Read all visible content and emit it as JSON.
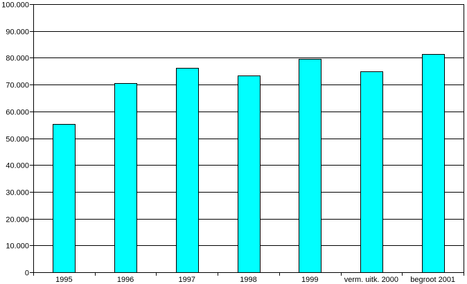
{
  "chart_data": {
    "type": "bar",
    "categories": [
      "1995",
      "1996",
      "1997",
      "1998",
      "1999",
      "verm. uitk. 2000",
      "begroot 2001"
    ],
    "values": [
      55200,
      70500,
      76300,
      73500,
      79700,
      75000,
      81400
    ],
    "title": "",
    "xlabel": "",
    "ylabel": "",
    "ylim": [
      0,
      100000
    ],
    "yticks": [
      0,
      10000,
      20000,
      30000,
      40000,
      50000,
      60000,
      70000,
      80000,
      90000,
      100000
    ],
    "ytick_labels": [
      "0",
      "10.000",
      "20.000",
      "30.000",
      "40.000",
      "50.000",
      "60.000",
      "70.000",
      "80.000",
      "90.000",
      "100.000"
    ],
    "grid": true,
    "legend": "none",
    "bar_color": "#00ffff",
    "bar_stroke": "#000000",
    "grid_color": "#000000"
  }
}
